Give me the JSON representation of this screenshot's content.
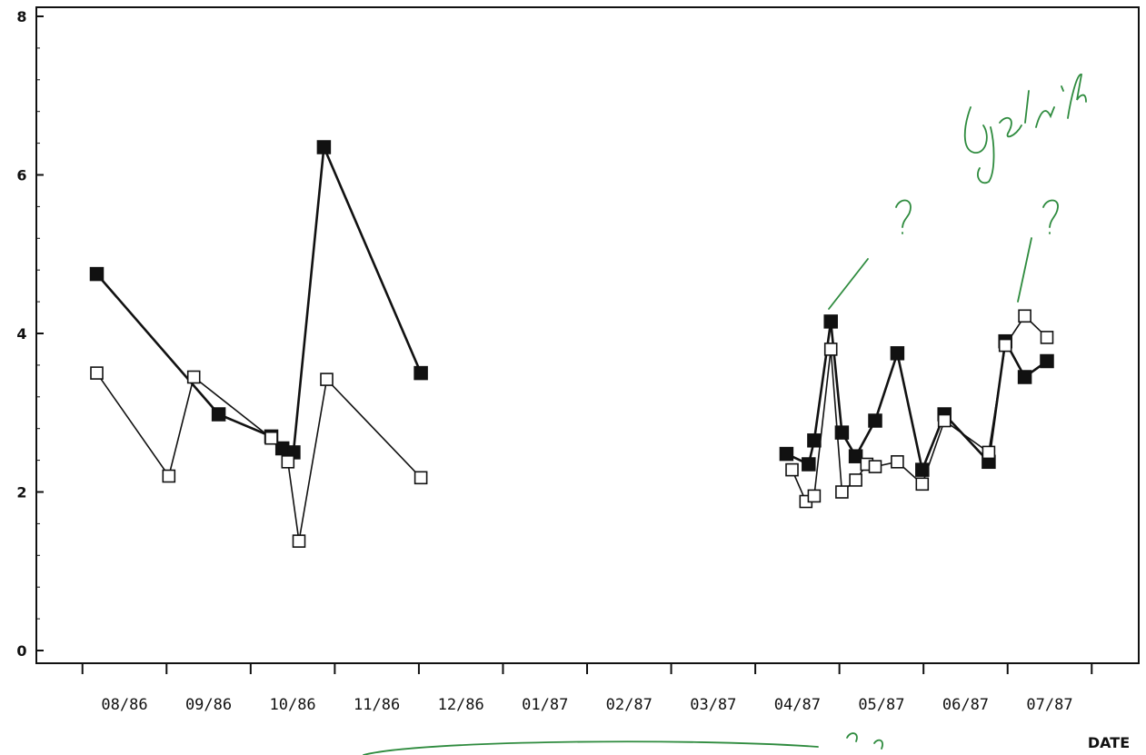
{
  "chart_data": {
    "type": "line",
    "title": "",
    "xlabel": "DATE",
    "ylabel": "",
    "ylim": [
      0,
      8
    ],
    "yticks": [
      0,
      2,
      4,
      6,
      8
    ],
    "x_tick_labels": [
      "08/86",
      "09/86",
      "10/86",
      "11/86",
      "12/86",
      "01/87",
      "02/87",
      "03/87",
      "04/87",
      "05/87",
      "06/87",
      "07/87"
    ],
    "grid": false,
    "series": [
      {
        "marker": "filled-square",
        "segments": [
          [
            {
              "x": "1986-07-22",
              "y": 4.75
            },
            {
              "x": "1986-09-04",
              "y": 2.98
            },
            {
              "x": "1986-09-23",
              "y": 2.7
            },
            {
              "x": "1986-09-27",
              "y": 2.55
            },
            {
              "x": "1986-10-01",
              "y": 2.5
            },
            {
              "x": "1986-10-12",
              "y": 6.35
            },
            {
              "x": "1986-11-16",
              "y": 3.5
            }
          ],
          [
            {
              "x": "1987-03-28",
              "y": 2.48
            },
            {
              "x": "1987-04-05",
              "y": 2.35
            },
            {
              "x": "1987-04-07",
              "y": 2.65
            },
            {
              "x": "1987-04-13",
              "y": 4.15
            },
            {
              "x": "1987-04-17",
              "y": 2.75
            },
            {
              "x": "1987-04-22",
              "y": 2.45
            },
            {
              "x": "1987-04-29",
              "y": 2.9
            },
            {
              "x": "1987-05-07",
              "y": 3.75
            },
            {
              "x": "1987-05-16",
              "y": 2.28
            },
            {
              "x": "1987-05-24",
              "y": 2.98
            },
            {
              "x": "1987-06-09",
              "y": 2.38
            },
            {
              "x": "1987-06-15",
              "y": 3.9
            },
            {
              "x": "1987-06-22",
              "y": 3.45
            },
            {
              "x": "1987-06-30",
              "y": 3.65
            }
          ]
        ]
      },
      {
        "marker": "open-square",
        "segments": [
          [
            {
              "x": "1986-07-22",
              "y": 3.5
            },
            {
              "x": "1986-08-17",
              "y": 2.2
            },
            {
              "x": "1986-08-26",
              "y": 3.45
            },
            {
              "x": "1986-09-23",
              "y": 2.68
            },
            {
              "x": "1986-09-29",
              "y": 2.38
            },
            {
              "x": "1986-10-03",
              "y": 1.38
            },
            {
              "x": "1986-10-13",
              "y": 3.42
            },
            {
              "x": "1986-11-16",
              "y": 2.18
            }
          ],
          [
            {
              "x": "1987-03-30",
              "y": 2.28
            },
            {
              "x": "1987-04-04",
              "y": 1.88
            },
            {
              "x": "1987-04-07",
              "y": 1.95
            },
            {
              "x": "1987-04-13",
              "y": 3.8
            },
            {
              "x": "1987-04-17",
              "y": 2.0
            },
            {
              "x": "1987-04-22",
              "y": 2.15
            },
            {
              "x": "1987-04-26",
              "y": 2.35
            },
            {
              "x": "1987-04-29",
              "y": 2.32
            },
            {
              "x": "1987-05-07",
              "y": 2.38
            },
            {
              "x": "1987-05-16",
              "y": 2.1
            },
            {
              "x": "1987-05-24",
              "y": 2.9
            },
            {
              "x": "1987-06-09",
              "y": 2.5
            },
            {
              "x": "1987-06-15",
              "y": 3.85
            },
            {
              "x": "1987-06-22",
              "y": 4.22
            },
            {
              "x": "1987-06-30",
              "y": 3.95
            }
          ]
        ]
      }
    ],
    "annotation_color": "#2e8b3e"
  }
}
